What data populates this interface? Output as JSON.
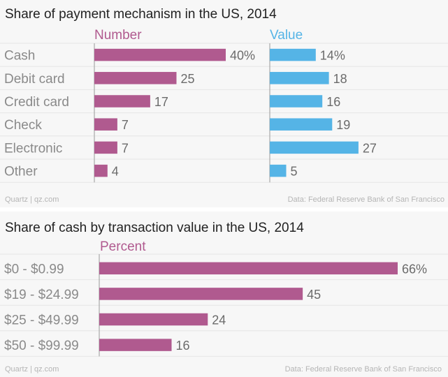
{
  "colors": {
    "number": "#b05a8f",
    "value": "#55b4e6",
    "percent": "#b05a8f",
    "grid": "#e6e6e6",
    "axis": "#999999"
  },
  "chart_data": [
    {
      "type": "bar",
      "orientation": "horizontal",
      "title": "Share of payment mechanism in the US, 2014",
      "categories": [
        "Cash",
        "Debit card",
        "Credit card",
        "Check",
        "Electronic",
        "Other"
      ],
      "series": [
        {
          "name": "Number",
          "values": [
            40,
            25,
            17,
            7,
            7,
            4
          ],
          "labels": [
            "40%",
            "25",
            "17",
            "7",
            "7",
            "4"
          ]
        },
        {
          "name": "Value",
          "values": [
            14,
            18,
            16,
            19,
            27,
            5
          ],
          "labels": [
            "14%",
            "18",
            "16",
            "19",
            "27",
            "5"
          ]
        }
      ],
      "xlim": [
        0,
        40
      ],
      "grid": true,
      "source_left": "Quartz | qz.com",
      "source_right": "Data: Federal Reserve Bank of San Francisco"
    },
    {
      "type": "bar",
      "orientation": "horizontal",
      "title": "Share of cash by transaction value in the US, 2014",
      "categories": [
        "$0 - $0.99",
        "$19 - $24.99",
        "$25 - $49.99",
        "$50 - $99.99"
      ],
      "series": [
        {
          "name": "Percent",
          "values": [
            66,
            45,
            24,
            16
          ],
          "labels": [
            "66%",
            "45",
            "24",
            "16"
          ]
        }
      ],
      "xlim": [
        0,
        66
      ],
      "grid": true,
      "source_left": "Quartz | qz.com",
      "source_right": "Data: Federal Reserve Bank of San Francisco"
    }
  ]
}
